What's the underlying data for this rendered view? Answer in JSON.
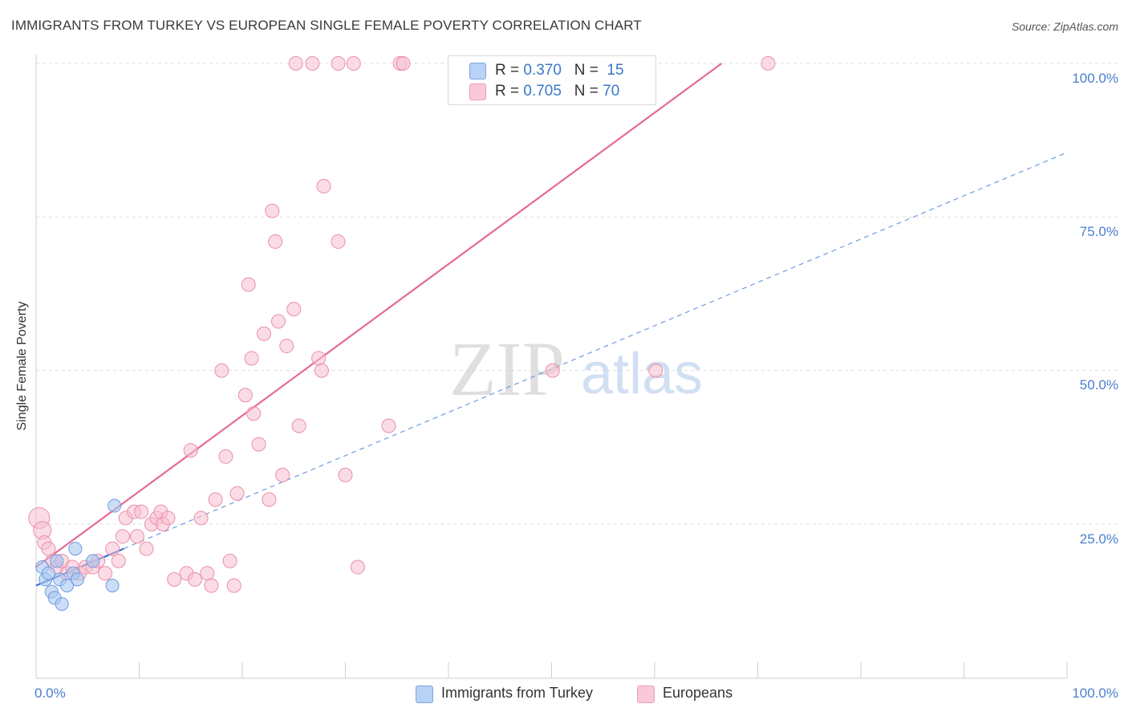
{
  "header": {
    "title": "IMMIGRANTS FROM TURKEY VS EUROPEAN SINGLE FEMALE POVERTY CORRELATION CHART",
    "source": "Source: ZipAtlas.com"
  },
  "watermark": {
    "zip": "ZIP",
    "atlas": "atlas"
  },
  "colors": {
    "blue": "#3b6fd4",
    "blue_fill": "#a9c8f0",
    "blue_stroke": "#6e9be0",
    "pink": "#e56a91",
    "pink_fill": "#f7c0d0",
    "pink_stroke": "#e98fab",
    "axis_text": "#4a7fcf",
    "grid": "#dddddd"
  },
  "legend": {
    "series1": {
      "r_label": "R = ",
      "r_value": "0.370",
      "n_label": "N = ",
      "n_value": "15"
    },
    "series2": {
      "r_label": "R = ",
      "r_value": "0.705",
      "n_label": "N = ",
      "n_value": "70"
    }
  },
  "chart_data": {
    "type": "scatter",
    "title": "IMMIGRANTS FROM TURKEY VS EUROPEAN SINGLE FEMALE POVERTY CORRELATION CHART",
    "xlabel": "",
    "ylabel": "Single Female Poverty",
    "xlim": [
      0,
      100
    ],
    "ylim": [
      0,
      105
    ],
    "x_tick_labels": [
      "0.0%",
      "100.0%"
    ],
    "y_ticks": [
      25,
      50,
      75,
      100
    ],
    "y_tick_labels": [
      "25.0%",
      "50.0%",
      "75.0%",
      "100.0%"
    ],
    "grid": true,
    "legend_position": "top-center",
    "series": [
      {
        "name": "Immigrants from Turkey",
        "color": "#3b6fd4",
        "r": 0.37,
        "n": 15,
        "points": [
          [
            0.6,
            18
          ],
          [
            0.9,
            16
          ],
          [
            1.2,
            17
          ],
          [
            1.5,
            14
          ],
          [
            1.8,
            13
          ],
          [
            2.0,
            19
          ],
          [
            2.3,
            16
          ],
          [
            2.5,
            12
          ],
          [
            3.0,
            15
          ],
          [
            3.6,
            17
          ],
          [
            3.8,
            21
          ],
          [
            4.0,
            16
          ],
          [
            5.5,
            19
          ],
          [
            7.6,
            28
          ],
          [
            7.4,
            15
          ]
        ],
        "trend": {
          "x": [
            0.0,
            8.5
          ],
          "y": [
            15.0,
            21.0
          ],
          "style": "solid"
        },
        "trend_extended": {
          "x": [
            8.5,
            100.0
          ],
          "y": [
            21.0,
            85.5
          ],
          "style": "dashed"
        }
      },
      {
        "name": "Europeans",
        "color": "#e56a91",
        "r": 0.705,
        "n": 70,
        "points": [
          [
            0.3,
            26
          ],
          [
            0.6,
            24
          ],
          [
            0.8,
            22
          ],
          [
            1.2,
            21
          ],
          [
            1.6,
            19
          ],
          [
            2.0,
            18
          ],
          [
            2.5,
            19
          ],
          [
            3.0,
            17
          ],
          [
            3.5,
            18
          ],
          [
            4.2,
            17
          ],
          [
            4.8,
            18
          ],
          [
            5.5,
            18
          ],
          [
            6.0,
            19
          ],
          [
            6.7,
            17
          ],
          [
            7.4,
            21
          ],
          [
            8.0,
            19
          ],
          [
            8.4,
            23
          ],
          [
            8.7,
            26
          ],
          [
            9.5,
            27
          ],
          [
            9.8,
            23
          ],
          [
            10.2,
            27
          ],
          [
            10.7,
            21
          ],
          [
            11.2,
            25
          ],
          [
            11.7,
            26
          ],
          [
            12.1,
            27
          ],
          [
            12.3,
            25
          ],
          [
            12.8,
            26
          ],
          [
            13.4,
            16
          ],
          [
            14.6,
            17
          ],
          [
            15.0,
            37
          ],
          [
            15.4,
            16
          ],
          [
            16.0,
            26
          ],
          [
            16.6,
            17
          ],
          [
            17.0,
            15
          ],
          [
            17.4,
            29
          ],
          [
            18.0,
            50
          ],
          [
            18.4,
            36
          ],
          [
            18.8,
            19
          ],
          [
            19.2,
            15
          ],
          [
            19.5,
            30
          ],
          [
            20.3,
            46
          ],
          [
            20.6,
            64
          ],
          [
            20.9,
            52
          ],
          [
            21.1,
            43
          ],
          [
            21.6,
            38
          ],
          [
            22.1,
            56
          ],
          [
            22.6,
            29
          ],
          [
            22.9,
            76
          ],
          [
            23.2,
            71
          ],
          [
            23.5,
            58
          ],
          [
            23.9,
            33
          ],
          [
            24.3,
            54
          ],
          [
            25.0,
            60
          ],
          [
            25.5,
            41
          ],
          [
            27.4,
            52
          ],
          [
            27.7,
            50
          ],
          [
            27.9,
            80
          ],
          [
            29.3,
            71
          ],
          [
            30.0,
            33
          ],
          [
            31.2,
            18
          ],
          [
            34.2,
            41
          ],
          [
            50.1,
            50
          ],
          [
            60.1,
            50
          ],
          [
            25.2,
            100
          ],
          [
            26.8,
            100
          ],
          [
            29.3,
            100
          ],
          [
            30.8,
            100
          ],
          [
            35.3,
            100
          ],
          [
            35.6,
            100
          ],
          [
            71.0,
            100
          ]
        ],
        "trend": {
          "x": [
            0.0,
            66.5
          ],
          "y": [
            18.0,
            100.0
          ],
          "style": "solid"
        }
      }
    ]
  },
  "bottom_legend": {
    "series1_label": "Immigrants from Turkey",
    "series2_label": "Europeans"
  }
}
